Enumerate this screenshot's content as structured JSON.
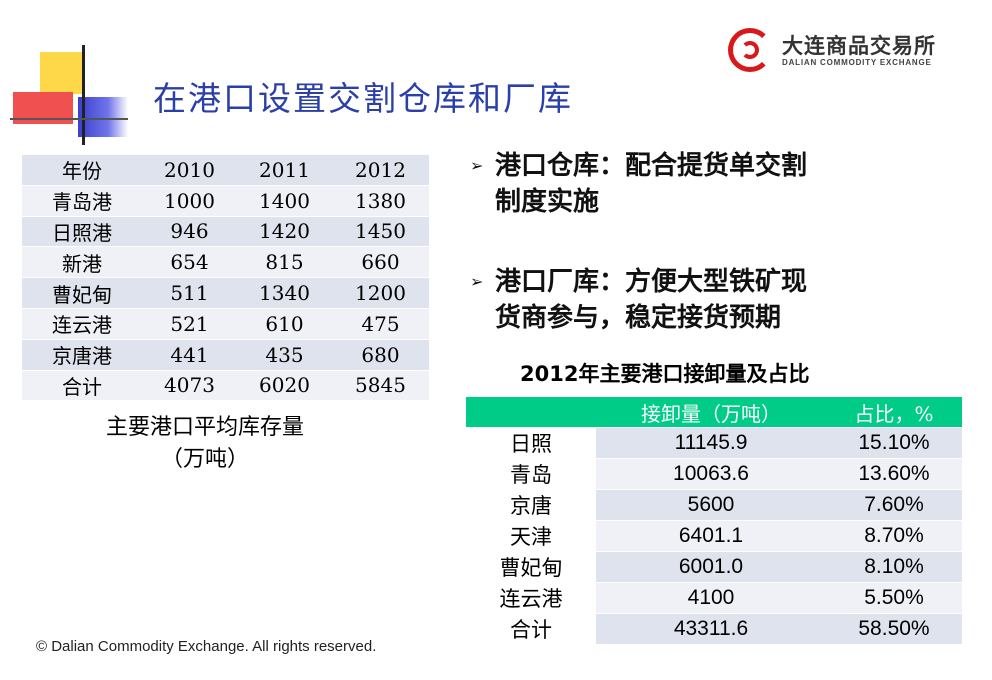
{
  "title": "在港口设置交割仓库和厂库",
  "logo": {
    "name_cn": "大连商品交易所",
    "name_en": "DALIAN COMMODITY EXCHANGE"
  },
  "inventory_table": {
    "headers": [
      "年份",
      "2010",
      "2011",
      "2012"
    ],
    "rows": [
      [
        "青岛港",
        "1000",
        "1400",
        "1380"
      ],
      [
        "日照港",
        "946",
        "1420",
        "1450"
      ],
      [
        "新港",
        "654",
        "815",
        "660"
      ],
      [
        "曹妃甸",
        "511",
        "1340",
        "1200"
      ],
      [
        "连云港",
        "521",
        "610",
        "475"
      ],
      [
        "京唐港",
        "441",
        "435",
        "680"
      ],
      [
        "合计",
        "4073",
        "6020",
        "5845"
      ]
    ]
  },
  "inventory_caption_line1": "主要港口平均库存量",
  "inventory_caption_line2": "（万吨）",
  "bullets": [
    {
      "line1": "港口仓库：配合提货单交割",
      "line2": "制度实施"
    },
    {
      "line1": "港口厂库：方便大型铁矿现",
      "line2": "货商参与，稳定接货预期"
    }
  ],
  "throughput_title": "2012年主要港口接卸量及占比",
  "throughput_table": {
    "headers": [
      "",
      "接卸量（万吨）",
      "占比，%"
    ],
    "rows": [
      [
        "日照",
        "11145.9",
        "15.10%"
      ],
      [
        "青岛",
        "10063.6",
        "13.60%"
      ],
      [
        "京唐",
        "5600",
        "7.60%"
      ],
      [
        "天津",
        "6401.1",
        "8.70%"
      ],
      [
        "曹妃甸",
        "6001.0",
        "8.10%"
      ],
      [
        "连云港",
        "4100",
        "5.50%"
      ],
      [
        "合计",
        "43311.6",
        "58.50%"
      ]
    ]
  },
  "copyright": "© Dalian Commodity Exchange. All rights reserved.",
  "colors": {
    "title": "#2b3fa8",
    "logo_red": "#d7191c",
    "table_header_green": "#00cc88",
    "table_row_dark": "#dfe3ed",
    "table_row_light": "#eff1f6"
  }
}
